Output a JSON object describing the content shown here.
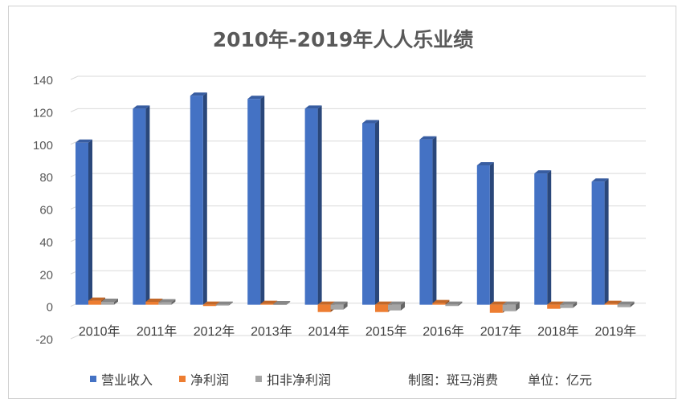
{
  "chart_data": {
    "type": "bar",
    "title": "2010年-2019年人人乐业绩",
    "xlabel": "",
    "ylabel": "",
    "ylim": [
      -20,
      140
    ],
    "yticks": [
      140,
      120,
      100,
      80,
      60,
      40,
      20,
      0,
      -20
    ],
    "grid": true,
    "legend_position": "bottom",
    "categories": [
      "2010年",
      "2011年",
      "2012年",
      "2013年",
      "2014年",
      "2015年",
      "2016年",
      "2017年",
      "2018年",
      "2019年"
    ],
    "series": [
      {
        "name": "营业收入",
        "color": "#4472C4",
        "values": [
          100,
          121,
          129,
          127,
          121,
          112,
          102,
          86,
          81,
          76
        ]
      },
      {
        "name": "净利润",
        "color": "#ED7D31",
        "values": [
          2.5,
          1.8,
          -0.8,
          0.5,
          -4.5,
          -4.5,
          1.0,
          -5.0,
          -2.5,
          0.5
        ]
      },
      {
        "name": "扣非净利润",
        "color": "#A5A5A5",
        "values": [
          1.8,
          1.5,
          -0.5,
          0.3,
          -3.0,
          -3.5,
          -0.8,
          -4.0,
          -2.0,
          -1.5
        ]
      }
    ]
  },
  "notes": {
    "source": "制图：斑马消费",
    "unit": "单位：亿元"
  }
}
